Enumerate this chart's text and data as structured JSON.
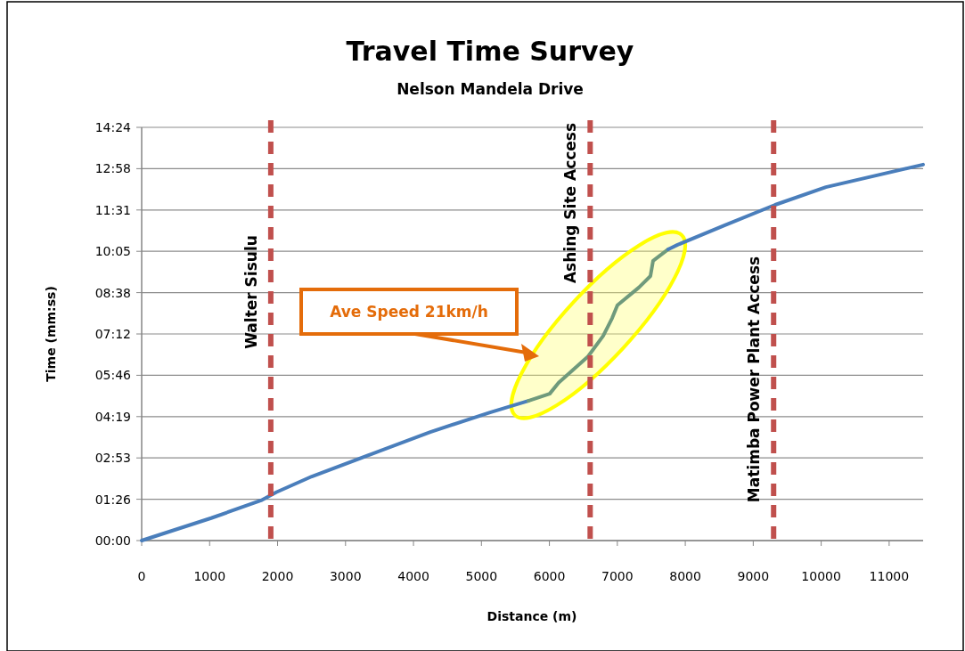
{
  "chart_data": {
    "type": "line",
    "title": "Travel Time Survey",
    "subtitle": "Nelson Mandela Drive",
    "xlabel": "Distance (m)",
    "ylabel": "Time (mm:ss)",
    "series": [
      {
        "color": "#4a7ebb",
        "x": [
          0,
          1023,
          1757,
          1980,
          2504,
          3383,
          4248,
          5127,
          5690
        ],
        "values": [
          0,
          47,
          84,
          101,
          134,
          181,
          227,
          268,
          292
        ]
      },
      {
        "color": "#6f9a7c",
        "x": [
          5690,
          6005,
          6136,
          6569,
          6792,
          6923,
          7001,
          7316,
          7487,
          7526,
          7749
        ],
        "values": [
          292,
          307,
          330,
          385,
          428,
          465,
          492,
          529,
          553,
          585,
          609
        ]
      },
      {
        "color": "#4a7ebb",
        "x": [
          7749,
          7880,
          8575,
          9322,
          10069,
          11500
        ],
        "values": [
          609,
          618,
          659,
          702,
          739,
          786
        ]
      }
    ],
    "xlim": [
      0,
      11500
    ],
    "xticks": [
      0,
      1000,
      2000,
      3000,
      4000,
      5000,
      6000,
      7000,
      8000,
      9000,
      10000,
      11000
    ],
    "ylim": [
      0,
      864
    ],
    "yticks": [
      {
        "value": 0,
        "label": "00:00"
      },
      {
        "value": 86.4,
        "label": "01:26"
      },
      {
        "value": 172.8,
        "label": "02:53"
      },
      {
        "value": 259.2,
        "label": "04:19"
      },
      {
        "value": 345.6,
        "label": "05:46"
      },
      {
        "value": 432,
        "label": "07:12"
      },
      {
        "value": 518.4,
        "label": "08:38"
      },
      {
        "value": 604.8,
        "label": "10:05"
      },
      {
        "value": 691.2,
        "label": "11:31"
      },
      {
        "value": 777.6,
        "label": "12:58"
      },
      {
        "value": 864,
        "label": "14:24"
      }
    ],
    "grid": "y",
    "marker": "none",
    "line_style": "solid",
    "ref_lines": [
      {
        "axis": "x",
        "value": 1900,
        "label": "Walter Sisulu",
        "color": "#c0504d",
        "line_style": "dashed"
      },
      {
        "axis": "x",
        "value": 6600,
        "label": "Ashing Site Access",
        "color": "#c0504d",
        "line_style": "dashed"
      },
      {
        "axis": "x",
        "value": 9300,
        "label": "Matimba Power Plant Access",
        "color": "#c0504d",
        "line_style": "dashed"
      }
    ],
    "annotations": [
      "Ave Speed 21km/h"
    ]
  }
}
